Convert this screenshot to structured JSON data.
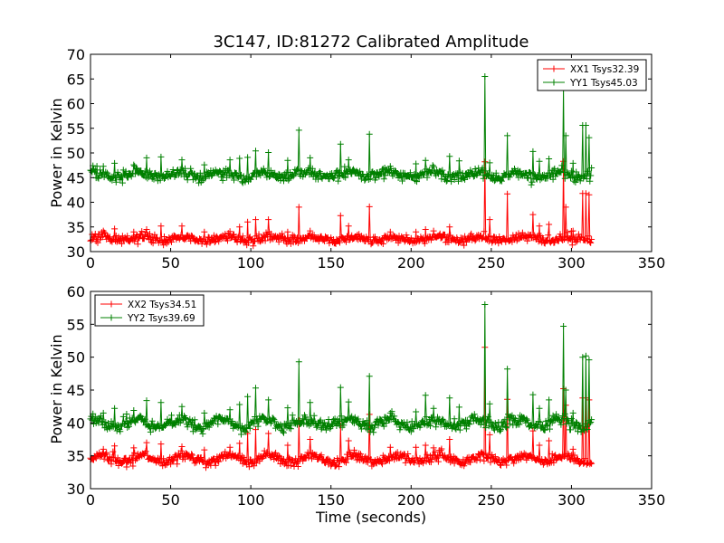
{
  "chart_data": [
    {
      "type": "line",
      "title": "3C147, ID:81272 Calibrated Amplitude",
      "xlabel": "",
      "ylabel": "Power in Kelvin",
      "xlim": [
        0,
        350
      ],
      "ylim": [
        30,
        70
      ],
      "xticks": [
        0,
        50,
        100,
        150,
        200,
        250,
        300,
        350
      ],
      "yticks": [
        30,
        35,
        40,
        45,
        50,
        55,
        60,
        65,
        70
      ],
      "legend_position": "upper right",
      "series": [
        {
          "name": "XX1 Tsys32.39",
          "color": "#ff0000",
          "baseline": 32.6,
          "noise": 0.45,
          "wave_amp": 0.35,
          "end": 312.5,
          "spikes": [
            [
              8,
              34.2
            ],
            [
              15,
              34.6
            ],
            [
              27,
              34.0
            ],
            [
              35,
              34.5
            ],
            [
              44,
              35.2
            ],
            [
              57,
              35.2
            ],
            [
              71,
              34.0
            ],
            [
              87,
              34.1
            ],
            [
              93,
              35.0
            ],
            [
              98,
              36.0
            ],
            [
              103,
              36.5
            ],
            [
              111,
              36.5
            ],
            [
              123,
              34.0
            ],
            [
              130,
              39.0
            ],
            [
              137,
              34.2
            ],
            [
              156,
              37.3
            ],
            [
              161,
              35.2
            ],
            [
              174,
              39.1
            ],
            [
              187,
              34.0
            ],
            [
              203,
              34.0
            ],
            [
              209,
              34.5
            ],
            [
              214,
              34.2
            ],
            [
              224,
              35.0
            ],
            [
              246,
              48.2
            ],
            [
              249,
              36.5
            ],
            [
              260,
              41.7
            ],
            [
              276,
              37.5
            ],
            [
              280,
              35.2
            ],
            [
              286,
              35.5
            ],
            [
              295,
              48.3
            ],
            [
              296.5,
              39.0
            ],
            [
              301,
              34.2
            ],
            [
              307,
              41.8
            ],
            [
              309,
              41.8
            ],
            [
              311,
              41.5
            ]
          ]
        },
        {
          "name": "YY1 Tsys45.03",
          "color": "#008000",
          "baseline": 45.6,
          "noise": 0.55,
          "wave_amp": 0.5,
          "end": 312.5,
          "spikes": [
            [
              8,
              47.3
            ],
            [
              15,
              47.9
            ],
            [
              27,
              47.6
            ],
            [
              35,
              49.0
            ],
            [
              44,
              49.2
            ],
            [
              57,
              48.6
            ],
            [
              71,
              47.6
            ],
            [
              87,
              48.6
            ],
            [
              93,
              48.9
            ],
            [
              98,
              49.1
            ],
            [
              103,
              50.4
            ],
            [
              111,
              50.1
            ],
            [
              123,
              48.5
            ],
            [
              130,
              54.6
            ],
            [
              137,
              49.0
            ],
            [
              156,
              51.8
            ],
            [
              161,
              48.6
            ],
            [
              174,
              53.8
            ],
            [
              187,
              47.3
            ],
            [
              203,
              47.8
            ],
            [
              209,
              48.5
            ],
            [
              214,
              47.2
            ],
            [
              224,
              49.3
            ],
            [
              230,
              48.4
            ],
            [
              246,
              65.5
            ],
            [
              249,
              48.0
            ],
            [
              260,
              53.5
            ],
            [
              276,
              50.3
            ],
            [
              280,
              48.3
            ],
            [
              286,
              48.8
            ],
            [
              295,
              63.2
            ],
            [
              296.5,
              53.5
            ],
            [
              301,
              47.9
            ],
            [
              307,
              55.6
            ],
            [
              309,
              55.6
            ],
            [
              311,
              53.1
            ],
            [
              313,
              47.5
            ]
          ]
        }
      ]
    },
    {
      "type": "line",
      "title": "",
      "xlabel": "Time (seconds)",
      "ylabel": "Power in Kelvin",
      "xlim": [
        0,
        350
      ],
      "ylim": [
        30,
        60
      ],
      "xticks": [
        0,
        50,
        100,
        150,
        200,
        250,
        300,
        350
      ],
      "yticks": [
        30,
        35,
        40,
        45,
        50,
        55,
        60
      ],
      "legend_position": "upper left",
      "series": [
        {
          "name": "XX2 Tsys34.51",
          "color": "#ff0000",
          "baseline": 34.5,
          "noise": 0.35,
          "wave_amp": 0.55,
          "end": 312.5,
          "spikes": [
            [
              8,
              36.0
            ],
            [
              15,
              36.5
            ],
            [
              27,
              36.2
            ],
            [
              35,
              37.0
            ],
            [
              44,
              36.8
            ],
            [
              57,
              36.4
            ],
            [
              71,
              35.9
            ],
            [
              87,
              36.3
            ],
            [
              93,
              36.9
            ],
            [
              98,
              38.4
            ],
            [
              103,
              39.0
            ],
            [
              111,
              38.4
            ],
            [
              123,
              36.6
            ],
            [
              130,
              40.4
            ],
            [
              137,
              37.5
            ],
            [
              156,
              39.6
            ],
            [
              161,
              37.3
            ],
            [
              174,
              41.3
            ],
            [
              187,
              36.3
            ],
            [
              203,
              36.3
            ],
            [
              209,
              36.6
            ],
            [
              214,
              36.2
            ],
            [
              224,
              37.5
            ],
            [
              246,
              51.5
            ],
            [
              249,
              38.2
            ],
            [
              260,
              43.6
            ],
            [
              276,
              38.8
            ],
            [
              280,
              36.6
            ],
            [
              286,
              37.3
            ],
            [
              295,
              45.2
            ],
            [
              296.5,
              42.7
            ],
            [
              301,
              36.0
            ],
            [
              307,
              43.8
            ],
            [
              309,
              43.8
            ],
            [
              311,
              43.5
            ],
            [
              313,
              35.9
            ]
          ]
        },
        {
          "name": "YY2 Tsys39.69",
          "color": "#008000",
          "baseline": 40.0,
          "noise": 0.45,
          "wave_amp": 0.55,
          "end": 312.5,
          "spikes": [
            [
              8,
              41.5
            ],
            [
              15,
              42.2
            ],
            [
              27,
              41.9
            ],
            [
              35,
              43.4
            ],
            [
              44,
              43.1
            ],
            [
              57,
              42.5
            ],
            [
              71,
              41.5
            ],
            [
              87,
              42.0
            ],
            [
              93,
              42.8
            ],
            [
              98,
              44.0
            ],
            [
              103,
              45.3
            ],
            [
              111,
              43.5
            ],
            [
              123,
              42.3
            ],
            [
              130,
              49.3
            ],
            [
              137,
              43.1
            ],
            [
              156,
              45.4
            ],
            [
              161,
              43.2
            ],
            [
              174,
              47.1
            ],
            [
              187,
              41.5
            ],
            [
              203,
              41.7
            ],
            [
              209,
              44.2
            ],
            [
              214,
              42.2
            ],
            [
              224,
              43.8
            ],
            [
              230,
              42.4
            ],
            [
              246,
              58.0
            ],
            [
              249,
              42.9
            ],
            [
              260,
              48.2
            ],
            [
              276,
              44.3
            ],
            [
              280,
              42.2
            ],
            [
              286,
              43.5
            ],
            [
              295,
              54.7
            ],
            [
              296.5,
              45.0
            ],
            [
              301,
              41.5
            ],
            [
              307,
              50.0
            ],
            [
              309,
              50.2
            ],
            [
              311,
              49.6
            ],
            [
              313,
              41.7
            ]
          ]
        }
      ]
    }
  ]
}
